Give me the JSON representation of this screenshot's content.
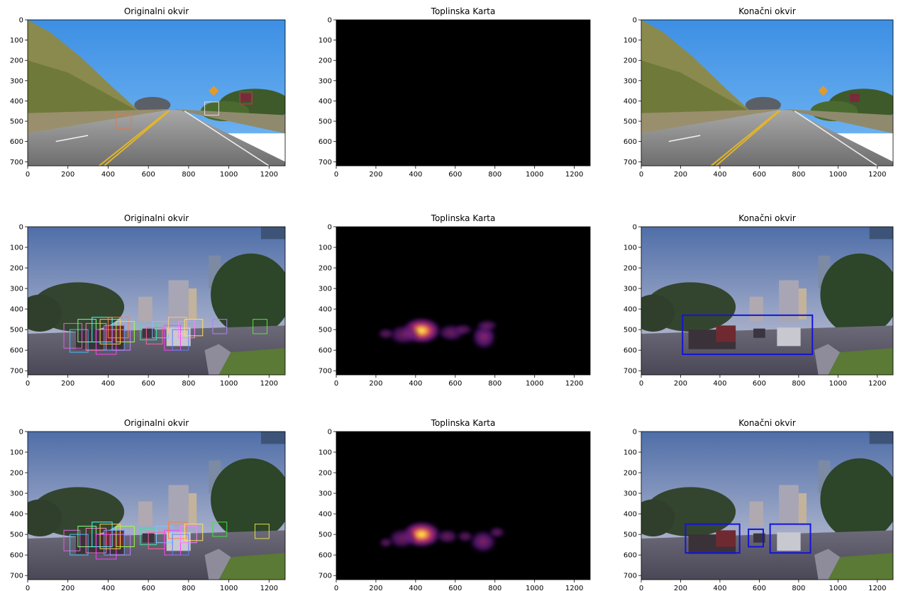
{
  "chart_data": {
    "type": "image-grid",
    "x_ticks": [
      "0",
      "200",
      "400",
      "600",
      "800",
      "1000",
      "1200"
    ],
    "y_ticks": [
      "0",
      "100",
      "200",
      "300",
      "400",
      "500",
      "600",
      "700"
    ],
    "xlim": [
      0,
      1280
    ],
    "ylim": [
      720,
      0
    ],
    "rows": [
      {
        "panels": [
          {
            "kind": "original",
            "title": "Originalni okvir",
            "scene": "highway",
            "boxes": [
              [
                880,
                405,
                950,
                470,
                "#dddddd"
              ],
              [
                1055,
                355,
                1115,
                415,
                "#cc3355"
              ],
              [
                440,
                465,
                515,
                535,
                "#e07a50"
              ]
            ]
          },
          {
            "kind": "heatmap",
            "title": "Toplinska Karta",
            "blobs": []
          },
          {
            "kind": "final",
            "title": "Konačni okvir",
            "scene": "highway",
            "boxes": []
          }
        ]
      },
      {
        "panels": [
          {
            "kind": "original",
            "title": "Originalni okvir",
            "scene": "city",
            "boxes": [
              [
                180,
                470,
                270,
                590,
                "#e060e0"
              ],
              [
                210,
                500,
                300,
                610,
                "#40c0ff"
              ],
              [
                250,
                450,
                340,
                560,
                "#80ff80"
              ],
              [
                290,
                470,
                390,
                600,
                "#ff80c0"
              ],
              [
                320,
                440,
                420,
                560,
                "#40ffff"
              ],
              [
                340,
                500,
                440,
                620,
                "#ff40ff"
              ],
              [
                360,
                450,
                460,
                570,
                "#ffd040"
              ],
              [
                380,
                480,
                480,
                600,
                "#60a0ff"
              ],
              [
                400,
                440,
                500,
                540,
                "#ff8040"
              ],
              [
                420,
                500,
                510,
                600,
                "#c080ff"
              ],
              [
                440,
                460,
                530,
                560,
                "#a0ff40"
              ],
              [
                560,
                470,
                640,
                550,
                "#40e0a0"
              ],
              [
                590,
                490,
                670,
                570,
                "#ff60a0"
              ],
              [
                620,
                460,
                700,
                540,
                "#80c0ff"
              ],
              [
                680,
                480,
                760,
                600,
                "#ff40ff"
              ],
              [
                700,
                440,
                790,
                520,
                "#ffc080"
              ],
              [
                720,
                500,
                800,
                600,
                "#6080ff"
              ],
              [
                750,
                460,
                830,
                540,
                "#ff80ff"
              ],
              [
                780,
                450,
                870,
                530,
                "#ffe060"
              ],
              [
                920,
                450,
                990,
                520,
                "#b080ff"
              ],
              [
                1120,
                450,
                1190,
                520,
                "#60e040"
              ]
            ]
          },
          {
            "kind": "heatmap",
            "title": "Toplinska Karta",
            "blobs": [
              [
                430,
                505,
                70,
                45,
                1
              ],
              [
                340,
                525,
                55,
                35,
                0.45
              ],
              [
                580,
                515,
                50,
                30,
                0.45
              ],
              [
                745,
                535,
                45,
                45,
                0.7
              ],
              [
                760,
                480,
                40,
                20,
                0.35
              ],
              [
                250,
                520,
                30,
                20,
                0.3
              ],
              [
                640,
                500,
                35,
                20,
                0.3
              ]
            ]
          },
          {
            "kind": "final",
            "title": "Konačni okvir",
            "scene": "city",
            "boxes": [
              [
                210,
                430,
                870,
                620,
                "#1414d8"
              ]
            ]
          }
        ]
      },
      {
        "panels": [
          {
            "kind": "original",
            "title": "Originalni okvir",
            "scene": "city",
            "boxes": [
              [
                180,
                480,
                260,
                580,
                "#e060e0"
              ],
              [
                210,
                500,
                300,
                600,
                "#40c0ff"
              ],
              [
                250,
                460,
                340,
                560,
                "#80ff80"
              ],
              [
                290,
                470,
                390,
                590,
                "#ff80c0"
              ],
              [
                320,
                440,
                420,
                560,
                "#40ffff"
              ],
              [
                340,
                500,
                440,
                620,
                "#ff40ff"
              ],
              [
                360,
                450,
                460,
                570,
                "#ffd040"
              ],
              [
                380,
                480,
                480,
                600,
                "#60a0ff"
              ],
              [
                410,
                500,
                510,
                600,
                "#c080ff"
              ],
              [
                440,
                460,
                530,
                560,
                "#a0ff40"
              ],
              [
                560,
                470,
                640,
                550,
                "#40e0a0"
              ],
              [
                600,
                490,
                680,
                570,
                "#ff60a0"
              ],
              [
                640,
                460,
                720,
                540,
                "#80c0ff"
              ],
              [
                680,
                480,
                760,
                600,
                "#ff40ff"
              ],
              [
                700,
                440,
                790,
                520,
                "#ff8040"
              ],
              [
                720,
                500,
                800,
                600,
                "#6080ff"
              ],
              [
                760,
                460,
                840,
                540,
                "#ff80ff"
              ],
              [
                780,
                450,
                870,
                530,
                "#ffe060"
              ],
              [
                920,
                440,
                990,
                510,
                "#40e040"
              ],
              [
                1130,
                450,
                1200,
                520,
                "#e0e040"
              ]
            ]
          },
          {
            "kind": "heatmap",
            "title": "Toplinska Karta",
            "blobs": [
              [
                430,
                500,
                70,
                45,
                1
              ],
              [
                330,
                520,
                50,
                35,
                0.45
              ],
              [
                560,
                510,
                40,
                25,
                0.4
              ],
              [
                740,
                535,
                50,
                40,
                0.6
              ],
              [
                810,
                490,
                30,
                20,
                0.35
              ],
              [
                250,
                540,
                25,
                18,
                0.3
              ],
              [
                650,
                510,
                30,
                20,
                0.3
              ]
            ]
          },
          {
            "kind": "final",
            "title": "Konačni okvir",
            "scene": "city",
            "boxes": [
              [
                225,
                450,
                500,
                590,
                "#1414d8"
              ],
              [
                545,
                475,
                620,
                560,
                "#1414d8"
              ],
              [
                655,
                450,
                860,
                590,
                "#1414d8"
              ]
            ]
          }
        ]
      }
    ]
  }
}
